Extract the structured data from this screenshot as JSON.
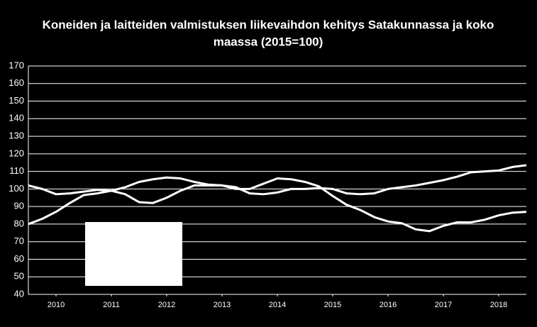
{
  "chart_data": {
    "type": "line",
    "title_lines": [
      "Koneiden ja laitteiden valmistuksen liikevaihdon kehitys Satakunnassa ja koko",
      "maassa (2015=100)"
    ],
    "xlim": [
      2010,
      2019
    ],
    "xticks": [
      {
        "value": 2010.5,
        "label": "2010"
      },
      {
        "value": 2011.5,
        "label": "2011"
      },
      {
        "value": 2012.5,
        "label": "2012"
      },
      {
        "value": 2013.5,
        "label": "2013"
      },
      {
        "value": 2014.5,
        "label": "2014"
      },
      {
        "value": 2015.5,
        "label": "2015"
      },
      {
        "value": 2016.5,
        "label": "2016"
      },
      {
        "value": 2017.5,
        "label": "2017"
      },
      {
        "value": 2018.5,
        "label": "2018"
      }
    ],
    "ylim": [
      40,
      170
    ],
    "yticks": [
      40,
      50,
      60,
      70,
      80,
      90,
      100,
      110,
      120,
      130,
      140,
      150,
      160,
      170
    ],
    "grid": true,
    "x": [
      2010,
      2010.25,
      2010.5,
      2010.75,
      2011,
      2011.25,
      2011.5,
      2011.75,
      2012,
      2012.25,
      2012.5,
      2012.75,
      2013,
      2013.25,
      2013.5,
      2013.75,
      2014,
      2014.25,
      2014.5,
      2014.75,
      2015,
      2015.25,
      2015.5,
      2015.75,
      2016,
      2016.25,
      2016.5,
      2016.75,
      2017,
      2017.25,
      2017.5,
      2017.75,
      2018,
      2018.25,
      2018.5,
      2018.75,
      2019
    ],
    "series": [
      {
        "color": "#ffffff",
        "values": [
          102,
          100,
          97,
          97.5,
          98.5,
          99.5,
          99,
          97,
          92.5,
          92,
          95,
          99,
          102,
          102,
          102,
          101,
          97.5,
          97,
          98,
          100,
          100,
          100.5,
          100,
          97.5,
          97,
          97.5,
          100,
          101,
          102,
          103.5,
          105,
          107,
          109.5,
          110,
          110.5,
          112.5,
          113.5
        ]
      },
      {
        "color": "#ffffff",
        "values": [
          80,
          83,
          87,
          92,
          96.5,
          97.5,
          99,
          101,
          104,
          105.5,
          106.5,
          106,
          104,
          102.5,
          102,
          100,
          100,
          103,
          106,
          105.5,
          104,
          101.5,
          96,
          91,
          88,
          84,
          81.5,
          80.5,
          77,
          76,
          79,
          81,
          81,
          82.5,
          85,
          86.5,
          87
        ]
      }
    ]
  }
}
